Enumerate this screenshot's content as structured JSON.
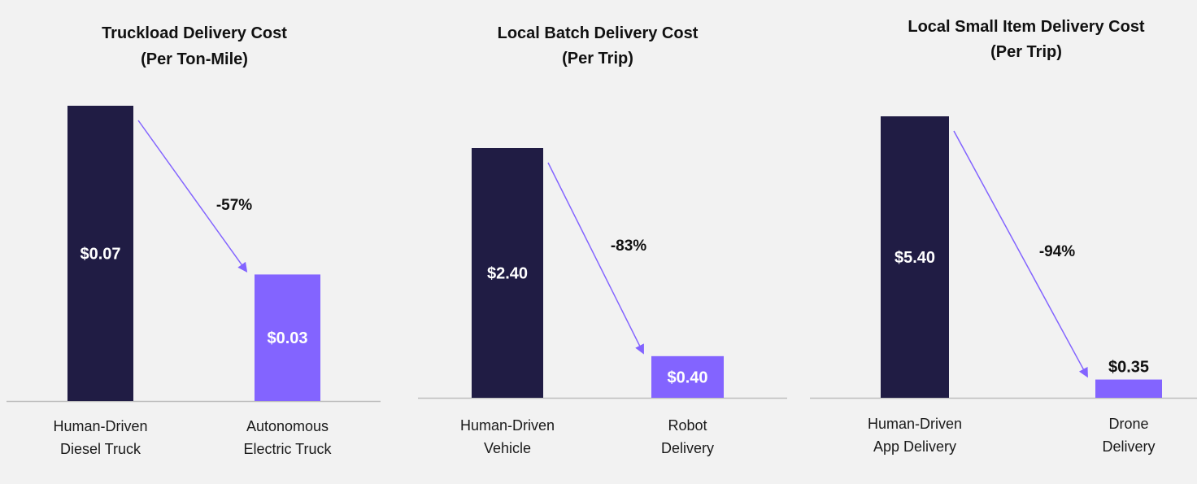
{
  "colors": {
    "baseline_bar": "#201c44",
    "autonomous_bar": "#8364ff",
    "arrow": "#8364ff",
    "axis": "#bdbdbd",
    "background": "#f2f2f2"
  },
  "chart_data": [
    {
      "type": "bar",
      "title": "Truckload Delivery Cost",
      "subtitle": "(Per Ton-Mile)",
      "categories": [
        [
          "Human-Driven",
          "Diesel Truck"
        ],
        [
          "Autonomous",
          "Electric Truck"
        ]
      ],
      "values": [
        0.07,
        0.03
      ],
      "value_labels": [
        "$0.07",
        "$0.03"
      ],
      "change_label": "-57%",
      "ylim": [
        0,
        0.07
      ],
      "grid": false
    },
    {
      "type": "bar",
      "title": "Local Batch Delivery Cost",
      "subtitle": "(Per Trip)",
      "categories": [
        [
          "Human-Driven",
          "Vehicle"
        ],
        [
          "Robot",
          "Delivery"
        ]
      ],
      "values": [
        2.4,
        0.4
      ],
      "value_labels": [
        "$2.40",
        "$0.40"
      ],
      "change_label": "-83%",
      "ylim": [
        0,
        2.4
      ],
      "grid": false
    },
    {
      "type": "bar",
      "title": "Local Small Item Delivery Cost",
      "subtitle": "(Per Trip)",
      "categories": [
        [
          "Human-Driven",
          "App Delivery"
        ],
        [
          "Drone",
          "Delivery"
        ]
      ],
      "values": [
        5.4,
        0.35
      ],
      "value_labels": [
        "$5.40",
        "$0.35"
      ],
      "change_label": "-94%",
      "ylim": [
        0,
        5.4
      ],
      "grid": false
    }
  ]
}
